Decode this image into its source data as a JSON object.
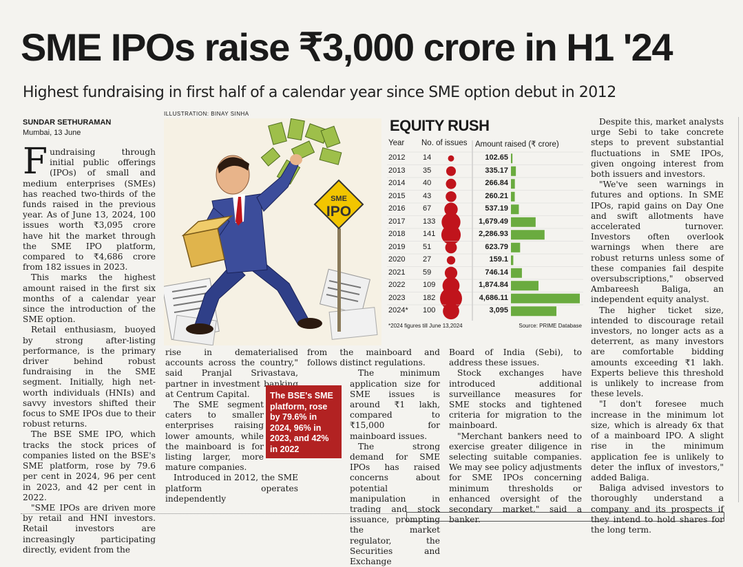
{
  "headline": "SME IPOs raise ₹3,000 crore in H1 '24",
  "subheadline": "Highest fundraising in first half of a calendar year since SME option debut in 2012",
  "byline": "SUNDAR SETHURAMAN",
  "dateline": "Mumbai, 13 June",
  "illustration_credit": "ILLUSTRATION: BINAY SINHA",
  "illustration_sign": [
    "SME",
    "IPO"
  ],
  "chart_data": {
    "type": "table",
    "title": "EQUITY RUSH",
    "columns": [
      "Year",
      "No. of issues",
      "Amount raised (₹ crore)"
    ],
    "rows": [
      {
        "year": "2012",
        "issues": 14,
        "issues_label": "14",
        "amount": 102.65,
        "amount_label": "102.65"
      },
      {
        "year": "2013",
        "issues": 35,
        "issues_label": "35",
        "amount": 335.17,
        "amount_label": "335.17"
      },
      {
        "year": "2014",
        "issues": 40,
        "issues_label": "40",
        "amount": 266.84,
        "amount_label": "266.84"
      },
      {
        "year": "2015",
        "issues": 43,
        "issues_label": "43",
        "amount": 260.21,
        "amount_label": "260.21"
      },
      {
        "year": "2016",
        "issues": 67,
        "issues_label": "67",
        "amount": 537.19,
        "amount_label": "537.19"
      },
      {
        "year": "2017",
        "issues": 133,
        "issues_label": "133",
        "amount": 1679.49,
        "amount_label": "1,679.49"
      },
      {
        "year": "2018",
        "issues": 141,
        "issues_label": "141",
        "amount": 2286.93,
        "amount_label": "2,286.93"
      },
      {
        "year": "2019",
        "issues": 51,
        "issues_label": "51",
        "amount": 623.79,
        "amount_label": "623.79"
      },
      {
        "year": "2020",
        "issues": 27,
        "issues_label": "27",
        "amount": 159.1,
        "amount_label": "159.1"
      },
      {
        "year": "2021",
        "issues": 59,
        "issues_label": "59",
        "amount": 746.14,
        "amount_label": "746.14"
      },
      {
        "year": "2022",
        "issues": 109,
        "issues_label": "109",
        "amount": 1874.84,
        "amount_label": "1,874.84"
      },
      {
        "year": "2023",
        "issues": 182,
        "issues_label": "182",
        "amount": 4686.11,
        "amount_label": "4,686.11"
      },
      {
        "year": "2024*",
        "issues": 100,
        "issues_label": "100",
        "amount": 3095,
        "amount_label": "3,095"
      }
    ],
    "bubble_color": "#c0141c",
    "bar_color": "#6aab3f",
    "footnote": "*2024 figures till June 13,2024",
    "source": "Source: PRIME Database"
  },
  "pull_quote": "The BSE's SME platform, rose by 79.6% in 2024, 96% in 2023, and 42% in 2022",
  "columns": {
    "col1": {
      "dropcap": "F",
      "paragraphs": [
        "undraising through initial public offerings (IPOs) of small and medium enterprises (SMEs) has reached two-thirds of the funds raised in the previous year. As of June 13, 2024, 100 issues worth ₹3,095 crore have hit the market through the SME IPO platform, compared to ₹4,686 crore from 182 issues in 2023.",
        "This marks the highest amount raised in the first six months of a calendar year since the introduction of the SME option.",
        "Retail enthusiasm, buoyed by strong after-listing performance, is the primary driver behind robust fundraising in the SME segment. Initially, high net-worth individuals (HNIs) and savvy investors shifted their focus to SME IPOs due to their robust returns.",
        "The BSE SME IPO, which tracks the stock prices of companies listed on the BSE's SME platform, rose by 79.6 per cent in 2024, 96 per cent in 2023, and 42 per cent in 2022.",
        "\"SME IPOs are driven more by retail and HNI investors. Retail investors are increasingly participating directly, evident from the"
      ]
    },
    "col2": {
      "paragraphs": [
        "rise in dematerialised accounts across the country,\" said Pranjal Srivastava, partner in investment banking at Centrum Capital.",
        "The SME segment caters to smaller enterprises raising lower amounts, while the mainboard is for listing larger, more mature companies.",
        "Introduced in 2012, the SME platform operates independently"
      ]
    },
    "col3": {
      "paragraphs": [
        "from the mainboard and follows distinct regulations.",
        "The minimum application size for SME issues is around ₹1 lakh, compared to ₹15,000 for mainboard issues.",
        "The strong demand for SME IPOs has raised concerns about potential manipulation in trading and stock issuance, prompting the market regulator, the Securities and Exchange"
      ]
    },
    "col4": {
      "paragraphs": [
        "Board of India (Sebi), to address these issues.",
        "Stock exchanges have introduced additional surveillance measures for SME stocks and tightened criteria for migration to the mainboard.",
        "\"Merchant bankers need to exercise greater diligence in selecting suitable companies. We may see policy adjustments for SME IPOs concerning minimum thresholds or enhanced oversight of the secondary market,\" said a banker."
      ]
    },
    "col5": {
      "paragraphs": [
        "Despite this, market analysts urge Sebi to take concrete steps to prevent substantial fluctuations in SME IPOs, given ongoing interest from both issuers and investors.",
        "\"We've seen warnings in futures and options. In SME IPOs, rapid gains on Day One and swift allotments have accelerated turnover. Investors often overlook warnings when there are robust returns unless some of these companies fail despite oversubscriptions,\" observed Ambareesh Baliga, an independent equity analyst.",
        "The higher ticket size, intended to discourage retail investors, no longer acts as a deterrent, as many investors are comfortable bidding amounts exceeding ₹1 lakh. Experts believe this threshold is unlikely to increase from these levels.",
        "\"I don't foresee much increase in the minimum lot size, which is already 6x that of a mainboard IPO. A slight rise in the minimum application fee is unlikely to deter the influx of investors,\" added Baliga.",
        "Baliga advised investors to thoroughly understand a company and its prospects if they intend to hold shares for the long term."
      ]
    }
  }
}
